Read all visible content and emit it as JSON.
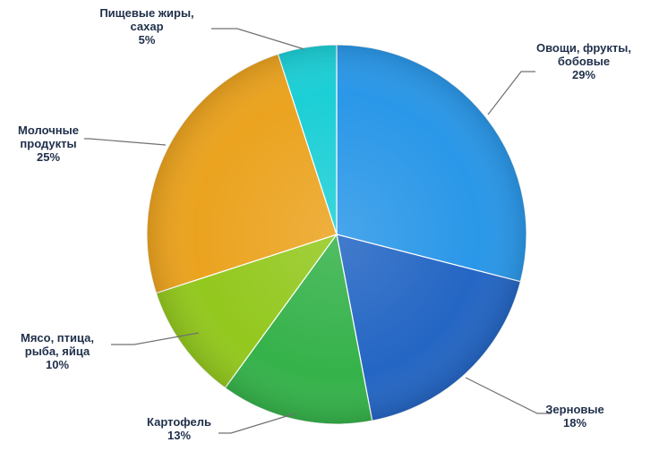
{
  "chart_data": {
    "type": "pie",
    "title": "",
    "start_angle_deg": 0,
    "direction": "clockwise",
    "slices": [
      {
        "lines": [
          "Овощи, фрукты,",
          "бобовые"
        ],
        "pct_label": "29%",
        "value": 29,
        "color": "#2a97e8"
      },
      {
        "lines": [
          "Зерновые"
        ],
        "pct_label": "18%",
        "value": 18,
        "color": "#2466c4"
      },
      {
        "lines": [
          "Картофель"
        ],
        "pct_label": "13%",
        "value": 13,
        "color": "#35b24a"
      },
      {
        "lines": [
          "Мясо, птица,",
          "рыба, яйца"
        ],
        "pct_label": "10%",
        "value": 10,
        "color": "#93c81e"
      },
      {
        "lines": [
          "Молочные",
          "продукты"
        ],
        "pct_label": "25%",
        "value": 25,
        "color": "#eba31f"
      },
      {
        "lines": [
          "Пищевые жиры,",
          "сахар"
        ],
        "pct_label": "5%",
        "value": 5,
        "color": "#1ccfd6"
      }
    ]
  }
}
